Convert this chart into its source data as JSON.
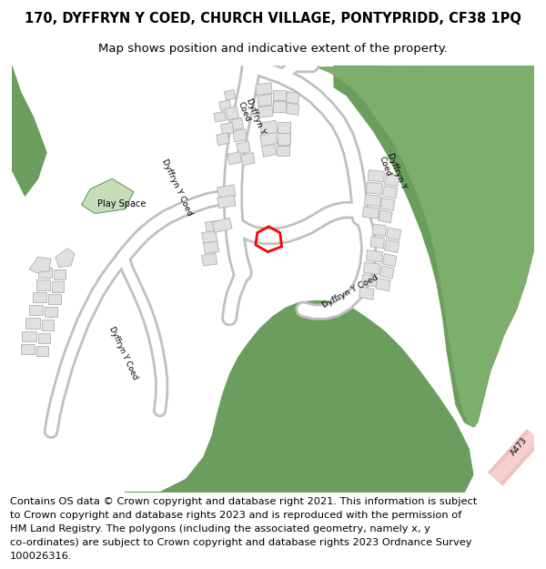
{
  "title_line1": "170, DYFFRYN Y COED, CHURCH VILLAGE, PONTYPRIDD, CF38 1PQ",
  "title_line2": "Map shows position and indicative extent of the property.",
  "footer_lines": [
    "Contains OS data © Crown copyright and database right 2021. This information is subject",
    "to Crown copyright and database rights 2023 and is reproduced with the permission of",
    "HM Land Registry. The polygons (including the associated geometry, namely x, y",
    "co-ordinates) are subject to Crown copyright and database rights 2023 Ordnance Survey",
    "100026316."
  ],
  "bg_color": "#ffffff",
  "map_bg": "#ffffff",
  "green_color": "#6b9e5e",
  "green_light": "#c5ddb8",
  "red_plot_color": "#ff0000",
  "pink_road_color": "#f2c4c4",
  "building_fill": "#e0e0e0",
  "building_edge": "#b0b0b0",
  "road_fill": "#ffffff",
  "road_edge": "#c0c0c0",
  "title_fontsize": 10.5,
  "subtitle_fontsize": 9.5,
  "footer_fontsize": 8.2,
  "label_fontsize": 6.5
}
